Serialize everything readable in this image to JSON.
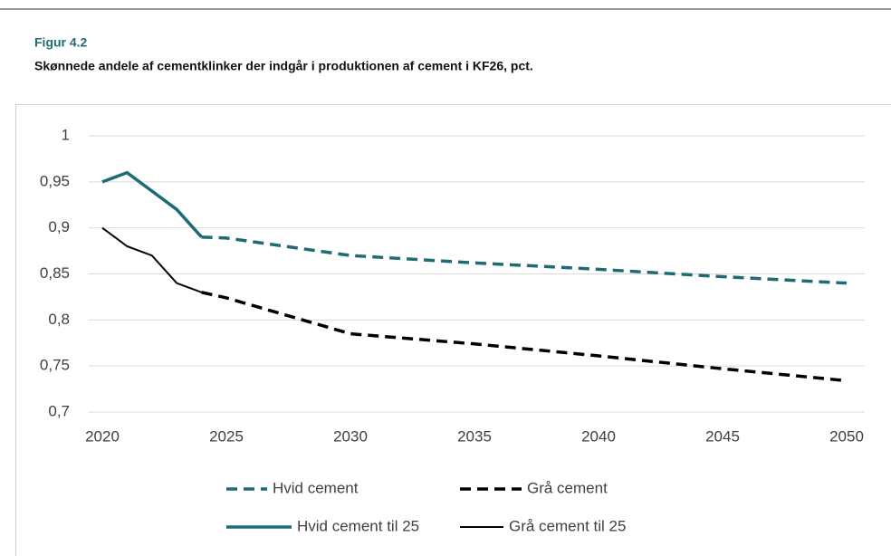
{
  "chart_data": {
    "type": "line",
    "title": "Figur 4.2",
    "subtitle": "Skønnede andele af cementklinker der indgår i produktionen af cement i KF26, pct.",
    "xlim": [
      2020,
      2050
    ],
    "xticks": [
      2020,
      2025,
      2030,
      2035,
      2040,
      2045,
      2050
    ],
    "ylim": [
      0.7,
      1
    ],
    "yticks": [
      {
        "value": 0.7,
        "label": "0,7"
      },
      {
        "value": 0.75,
        "label": "0,75"
      },
      {
        "value": 0.8,
        "label": "0,8"
      },
      {
        "value": 0.85,
        "label": "0,85"
      },
      {
        "value": 0.9,
        "label": "0,9"
      },
      {
        "value": 0.95,
        "label": "0,95"
      },
      1
    ],
    "grid": true,
    "series": [
      {
        "name": "Hvid cement",
        "color": "#1e6b73",
        "dash": "dashed",
        "width": 3.5,
        "x": [
          2024,
          2025,
          2030,
          2035,
          2040,
          2045,
          2050
        ],
        "values": [
          0.89,
          0.889,
          0.87,
          0.862,
          0.855,
          0.847,
          0.84
        ]
      },
      {
        "name": "Grå cement",
        "color": "#000000",
        "dash": "dashed",
        "width": 3.5,
        "x": [
          2024,
          2025,
          2030,
          2035,
          2040,
          2045,
          2050
        ],
        "values": [
          0.83,
          0.824,
          0.785,
          0.774,
          0.761,
          0.747,
          0.734
        ]
      },
      {
        "name": "Hvid cement til 25",
        "color": "#1e6b73",
        "dash": "solid",
        "width": 3.5,
        "x": [
          2020,
          2021,
          2022,
          2023,
          2024
        ],
        "values": [
          0.95,
          0.96,
          0.94,
          0.92,
          0.89
        ]
      },
      {
        "name": "Grå cement til 25",
        "color": "#000000",
        "dash": "solid",
        "width": 2,
        "x": [
          2020,
          2021,
          2022,
          2023,
          2024
        ],
        "values": [
          0.9,
          0.88,
          0.87,
          0.84,
          0.83
        ]
      }
    ]
  }
}
